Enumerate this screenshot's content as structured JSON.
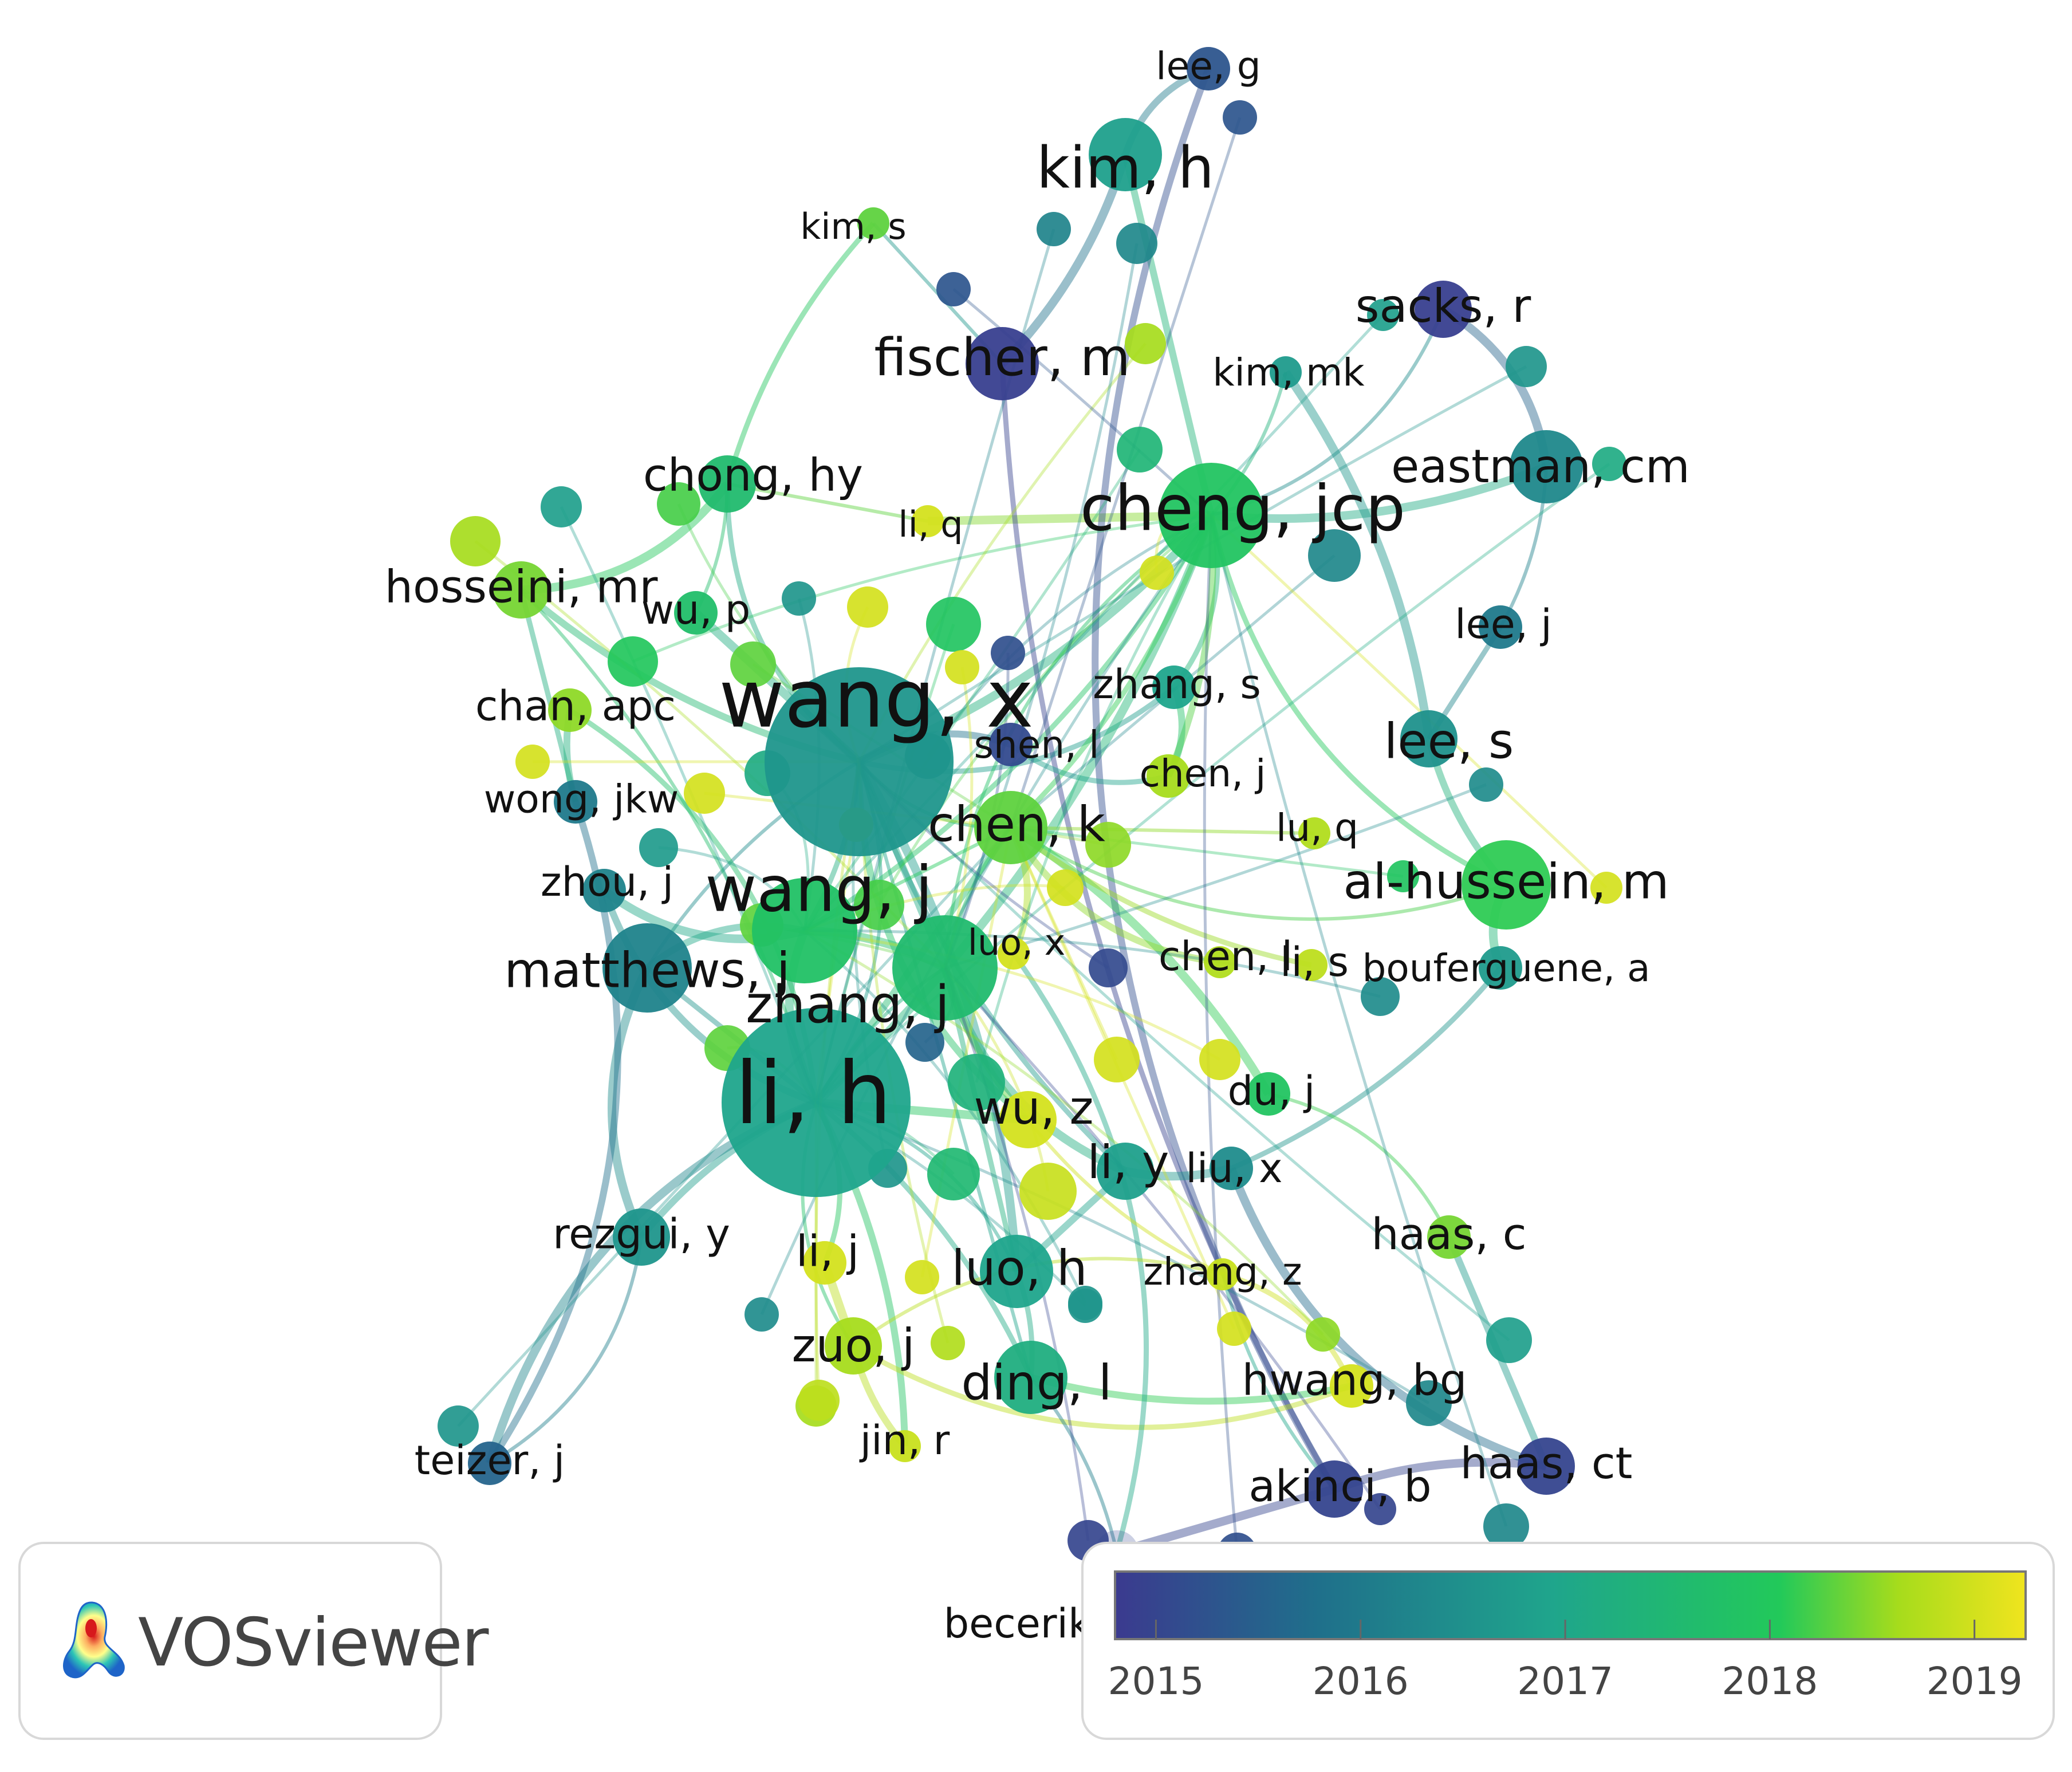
{
  "app": {
    "brand": "VOSviewer"
  },
  "legend": {
    "ticks": [
      "2015",
      "2016",
      "2017",
      "2018",
      "2019"
    ],
    "range": [
      2014.8,
      2019.25
    ],
    "colors": [
      "#3b3a8f",
      "#1f6f8b",
      "#1fa58c",
      "#22c95a",
      "#a6dc1c",
      "#f0e41e"
    ]
  },
  "diagram": {
    "nodes": [
      {
        "id": "wang_x",
        "label": "wang, x",
        "year": 2016.6,
        "weight": 10
      },
      {
        "id": "li_h",
        "label": "li, h",
        "year": 2016.9,
        "weight": 10
      },
      {
        "id": "wang_j",
        "label": "wang, j",
        "year": 2017.8,
        "weight": 7
      },
      {
        "id": "zhang_j",
        "label": "zhang, j",
        "year": 2017.6,
        "weight": 7
      },
      {
        "id": "cheng_jcp",
        "label": "cheng, jcp",
        "year": 2017.9,
        "weight": 7
      },
      {
        "id": "kim_h",
        "label": "kim, h",
        "year": 2016.8,
        "weight": 5
      },
      {
        "id": "fischer_m",
        "label": "fischer, m",
        "year": 2014.9,
        "weight": 5
      },
      {
        "id": "sacks_r",
        "label": "sacks, r",
        "year": 2014.9,
        "weight": 4
      },
      {
        "id": "eastman_cm",
        "label": "eastman, cm",
        "year": 2016.3,
        "weight": 5
      },
      {
        "id": "al_hussein_m",
        "label": "al-hussein, m",
        "year": 2018.1,
        "weight": 6
      },
      {
        "id": "lee_s",
        "label": "lee, s",
        "year": 2016.5,
        "weight": 4
      },
      {
        "id": "matthews_j",
        "label": "matthews, j",
        "year": 2016.2,
        "weight": 6
      },
      {
        "id": "chen_k",
        "label": "chen, k",
        "year": 2018.3,
        "weight": 5
      },
      {
        "id": "chong_hy",
        "label": "chong, hy",
        "year": 2017.6,
        "weight": 4
      },
      {
        "id": "hosseini_mr",
        "label": "hosseini, mr",
        "year": 2018.4,
        "weight": 4
      },
      {
        "id": "wu_p",
        "label": "wu, p",
        "year": 2017.7,
        "weight": 3
      },
      {
        "id": "chan_apc",
        "label": "chan, apc",
        "year": 2018.5,
        "weight": 3
      },
      {
        "id": "wong_jkw",
        "label": "wong, jkw",
        "year": 2016.0,
        "weight": 3
      },
      {
        "id": "zhou_j",
        "label": "zhou, j",
        "year": 2016.2,
        "weight": 3
      },
      {
        "id": "zhang_s",
        "label": "zhang, s",
        "year": 2016.9,
        "weight": 3
      },
      {
        "id": "shen_l",
        "label": "shen, l",
        "year": 2015.1,
        "weight": 3
      },
      {
        "id": "chen_j",
        "label": "chen, j",
        "year": 2018.6,
        "weight": 3
      },
      {
        "id": "lu_q",
        "label": "lu, q",
        "year": 2018.7,
        "weight": 2
      },
      {
        "id": "lee_j",
        "label": "lee, j",
        "year": 2016.0,
        "weight": 3
      },
      {
        "id": "luo_x",
        "label": "luo, x",
        "year": 2019.0,
        "weight": 2
      },
      {
        "id": "chen_l",
        "label": "chen, l",
        "year": 2018.7,
        "weight": 2
      },
      {
        "id": "li_s",
        "label": "li, s",
        "year": 2018.8,
        "weight": 2
      },
      {
        "id": "bouferguene_a",
        "label": "bouferguene, a",
        "year": 2016.7,
        "weight": 3
      },
      {
        "id": "wu_z",
        "label": "wu, z",
        "year": 2019.0,
        "weight": 4
      },
      {
        "id": "du_j",
        "label": "du, j",
        "year": 2017.9,
        "weight": 3
      },
      {
        "id": "li_y",
        "label": "li, y",
        "year": 2016.8,
        "weight": 4
      },
      {
        "id": "liu_x",
        "label": "liu, x",
        "year": 2016.4,
        "weight": 3
      },
      {
        "id": "rezgui_y",
        "label": "rezgui, y",
        "year": 2016.6,
        "weight": 4
      },
      {
        "id": "li_j",
        "label": "li, j",
        "year": 2019.0,
        "weight": 3
      },
      {
        "id": "luo_h",
        "label": "luo, h",
        "year": 2016.9,
        "weight": 5
      },
      {
        "id": "zhang_z",
        "label": "zhang, z",
        "year": 2018.9,
        "weight": 2
      },
      {
        "id": "haas_c",
        "label": "haas, c",
        "year": 2018.4,
        "weight": 3
      },
      {
        "id": "zuo_j",
        "label": "zuo, j",
        "year": 2018.6,
        "weight": 4
      },
      {
        "id": "ding_l",
        "label": "ding, l",
        "year": 2017.2,
        "weight": 5
      },
      {
        "id": "hwang_bg",
        "label": "hwang, bg",
        "year": 2019.0,
        "weight": 3
      },
      {
        "id": "jin_r",
        "label": "jin, r",
        "year": 2018.9,
        "weight": 2
      },
      {
        "id": "teizer_j",
        "label": "teizer, j",
        "year": 2015.6,
        "weight": 3
      },
      {
        "id": "akinci_b",
        "label": "akinci, b",
        "year": 2015.0,
        "weight": 4
      },
      {
        "id": "haas_ct",
        "label": "haas, ct",
        "year": 2015.0,
        "weight": 4
      },
      {
        "id": "lee_g",
        "label": "lee, g",
        "year": 2015.3,
        "weight": 3
      },
      {
        "id": "kim_s",
        "label": "kim, s",
        "year": 2018.3,
        "weight": 2
      },
      {
        "id": "kim_mk",
        "label": "kim, mk",
        "year": 2016.7,
        "weight": 2
      },
      {
        "id": "li_q",
        "label": "li, q",
        "year": 2019.0,
        "weight": 2
      },
      {
        "id": "becerik",
        "label": "becerik-gerber, b",
        "year": 2015.0,
        "weight": 3
      }
    ]
  }
}
